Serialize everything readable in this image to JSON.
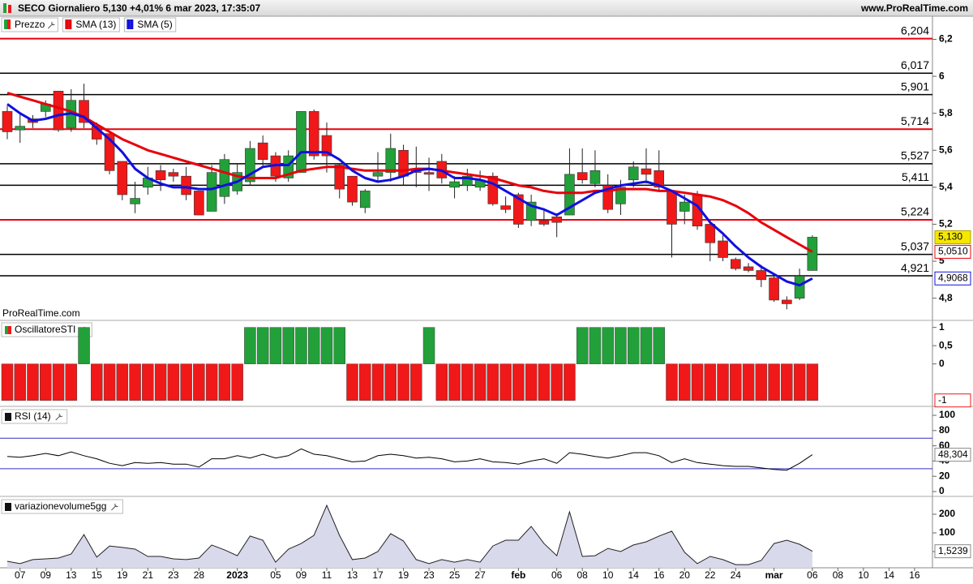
{
  "header": {
    "title": "SECO Giornaliero 5,130 +4,01% 6 mar 2023, 17:35:07",
    "site": "www.ProRealTime.com"
  },
  "chart_data": [
    {
      "type": "candlestick",
      "watermark": "ProRealTime.com",
      "categories": [
        null,
        "07",
        null,
        "09",
        null,
        "13",
        null,
        "15",
        null,
        "19",
        null,
        "21",
        null,
        "23",
        null,
        "28",
        null,
        null,
        "2023",
        null,
        null,
        "05",
        null,
        "09",
        null,
        "11",
        null,
        "13",
        null,
        "17",
        null,
        "19",
        null,
        "23",
        null,
        "25",
        null,
        "27",
        null,
        null,
        "feb",
        null,
        null,
        "06",
        null,
        "08",
        null,
        "10",
        null,
        "14",
        null,
        "16",
        null,
        "20",
        null,
        "22",
        null,
        "24",
        null,
        null,
        "mar",
        null,
        null,
        "06",
        null,
        "08",
        null,
        "10",
        null,
        "14",
        null,
        "16"
      ],
      "ylim": [
        4.68,
        6.325
      ],
      "yticks": [
        {
          "value": 4.8,
          "label": "4,8"
        },
        5,
        {
          "value": 5.2,
          "label": "5,2"
        },
        {
          "value": 5.4,
          "label": "5,4"
        },
        {
          "value": 5.6,
          "label": "5,6"
        },
        {
          "value": 5.8,
          "label": "5,8"
        },
        6,
        {
          "value": 6.2,
          "label": "6,2"
        }
      ],
      "levels": [
        {
          "value": 6.204,
          "label": "6,204",
          "color": "#e8000b"
        },
        {
          "value": 6.017,
          "label": "6,017",
          "color": "#000000"
        },
        {
          "value": 5.901,
          "label": "5,901",
          "color": "#000000"
        },
        {
          "value": 5.714,
          "label": "5,714",
          "color": "#e8000b"
        },
        {
          "value": 5.527,
          "label": "5,527",
          "color": "#000000"
        },
        {
          "value": 5.411,
          "label": "5,411",
          "color": "#000000"
        },
        {
          "value": 5.224,
          "label": "5,224",
          "color": "#e8000b"
        },
        {
          "value": 5.037,
          "label": "5,037",
          "color": "#000000"
        },
        {
          "value": 4.921,
          "label": "4,921",
          "color": "#000000"
        }
      ],
      "series": [
        {
          "name": "Prezzo",
          "color_up": "#22a03a",
          "color_down": "#f01818",
          "last_label": "5,130",
          "open": [
            5.81,
            5.71,
            5.77,
            5.81,
            5.92,
            5.72,
            5.87,
            5.73,
            5.69,
            5.54,
            5.31,
            5.4,
            5.49,
            5.48,
            5.46,
            5.38,
            5.27,
            5.35,
            5.38,
            5.43,
            5.64,
            5.57,
            5.45,
            5.48,
            5.81,
            5.68,
            5.52,
            5.46,
            5.29,
            5.46,
            5.48,
            5.6,
            5.5,
            5.48,
            5.54,
            5.4,
            5.41,
            5.4,
            5.46,
            5.3,
            5.36,
            5.22,
            5.22,
            5.24,
            5.25,
            5.48,
            5.42,
            5.41,
            5.31,
            5.44,
            5.5,
            5.49,
            5.38,
            5.27,
            5.36,
            5.2,
            5.11,
            5.01,
            4.97,
            4.95,
            4.91,
            4.79,
            4.8,
            4.95,
            null,
            null,
            null,
            null,
            null,
            null,
            null,
            null
          ],
          "high": [
            5.84,
            5.8,
            5.79,
            5.87,
            5.92,
            5.93,
            5.96,
            5.75,
            5.69,
            5.54,
            5.43,
            5.51,
            5.52,
            5.5,
            5.51,
            5.38,
            5.52,
            5.58,
            5.53,
            5.65,
            5.68,
            5.59,
            5.6,
            5.81,
            5.82,
            5.75,
            5.53,
            5.46,
            5.39,
            5.59,
            5.69,
            5.63,
            5.62,
            5.56,
            5.58,
            5.46,
            5.5,
            5.49,
            5.48,
            5.35,
            5.37,
            5.36,
            5.28,
            5.26,
            5.61,
            5.61,
            5.6,
            5.47,
            5.44,
            5.54,
            5.61,
            5.6,
            5.38,
            5.36,
            5.38,
            5.22,
            5.14,
            5.02,
            4.99,
            4.98,
            4.92,
            4.81,
            4.96,
            5.14,
            null,
            null,
            null,
            null,
            null,
            null,
            null,
            null
          ],
          "low": [
            5.66,
            5.64,
            5.72,
            5.78,
            5.7,
            5.7,
            5.72,
            5.63,
            5.47,
            5.33,
            5.26,
            5.36,
            5.38,
            5.43,
            5.33,
            5.25,
            5.27,
            5.31,
            5.36,
            5.41,
            5.51,
            5.43,
            5.43,
            5.48,
            5.55,
            5.48,
            5.34,
            5.3,
            5.26,
            5.43,
            5.43,
            5.41,
            5.4,
            5.38,
            5.42,
            5.34,
            5.38,
            5.38,
            5.3,
            5.26,
            5.18,
            5.19,
            5.19,
            5.13,
            5.25,
            5.42,
            5.4,
            5.26,
            5.25,
            5.4,
            5.42,
            5.38,
            5.02,
            5.2,
            5.17,
            5.0,
            5.0,
            4.95,
            4.94,
            4.86,
            4.78,
            4.74,
            4.79,
            4.95,
            null,
            null,
            null,
            null,
            null,
            null,
            null,
            null
          ],
          "close": [
            5.7,
            5.73,
            5.75,
            5.85,
            5.71,
            5.87,
            5.75,
            5.66,
            5.49,
            5.36,
            5.34,
            5.45,
            5.44,
            5.46,
            5.36,
            5.25,
            5.48,
            5.55,
            5.48,
            5.61,
            5.55,
            5.46,
            5.57,
            5.81,
            5.57,
            5.57,
            5.39,
            5.32,
            5.38,
            5.48,
            5.61,
            5.46,
            5.48,
            5.47,
            5.45,
            5.43,
            5.46,
            5.44,
            5.31,
            5.28,
            5.2,
            5.32,
            5.2,
            5.21,
            5.47,
            5.44,
            5.49,
            5.28,
            5.4,
            5.51,
            5.47,
            5.4,
            5.2,
            5.32,
            5.19,
            5.1,
            5.02,
            4.96,
            4.95,
            4.9,
            4.79,
            4.77,
            4.92,
            5.13,
            null,
            null,
            null,
            null,
            null,
            null,
            null,
            null
          ]
        },
        {
          "name": "SMA (13)",
          "color": "#e8000b",
          "last_label": "5,0510",
          "values": [
            5.91,
            5.89,
            5.87,
            5.85,
            5.83,
            5.81,
            5.78,
            5.74,
            5.7,
            5.66,
            5.63,
            5.6,
            5.58,
            5.56,
            5.54,
            5.52,
            5.5,
            5.48,
            5.46,
            5.45,
            5.45,
            5.45,
            5.47,
            5.49,
            5.5,
            5.51,
            5.51,
            5.5,
            5.49,
            5.49,
            5.49,
            5.49,
            5.5,
            5.5,
            5.49,
            5.48,
            5.47,
            5.46,
            5.45,
            5.43,
            5.41,
            5.4,
            5.38,
            5.37,
            5.37,
            5.37,
            5.38,
            5.38,
            5.39,
            5.39,
            5.39,
            5.38,
            5.38,
            5.37,
            5.36,
            5.35,
            5.33,
            5.3,
            5.26,
            5.21,
            5.17,
            5.13,
            5.09,
            5.051,
            null,
            null,
            null,
            null,
            null,
            null,
            null,
            null
          ]
        },
        {
          "name": "SMA (5)",
          "color": "#1010e0",
          "last_label": "4,9068",
          "values": [
            5.85,
            5.8,
            5.76,
            5.77,
            5.79,
            5.8,
            5.78,
            5.72,
            5.66,
            5.59,
            5.5,
            5.45,
            5.42,
            5.4,
            5.4,
            5.39,
            5.39,
            5.41,
            5.43,
            5.47,
            5.51,
            5.52,
            5.52,
            5.59,
            5.59,
            5.59,
            5.55,
            5.49,
            5.45,
            5.43,
            5.44,
            5.46,
            5.49,
            5.5,
            5.49,
            5.45,
            5.45,
            5.44,
            5.42,
            5.38,
            5.34,
            5.3,
            5.28,
            5.25,
            5.29,
            5.33,
            5.37,
            5.39,
            5.41,
            5.42,
            5.43,
            5.41,
            5.38,
            5.34,
            5.3,
            5.21,
            5.15,
            5.08,
            5.02,
            4.97,
            4.93,
            4.89,
            4.87,
            4.9068,
            null,
            null,
            null,
            null,
            null,
            null,
            null,
            null
          ]
        }
      ]
    },
    {
      "type": "bar",
      "title": "OscillatoreSTI",
      "color_up": "#22a03a",
      "color_down": "#f01818",
      "ylim": [
        -1.14,
        1.17
      ],
      "yticks": [
        {
          "value": 0.5,
          "label": "0,5"
        },
        0,
        1
      ],
      "values": [
        -1,
        -1,
        -1,
        -1,
        -1,
        -1,
        1,
        -1,
        -1,
        -1,
        -1,
        -1,
        -1,
        -1,
        -1,
        -1,
        -1,
        -1,
        -1,
        1,
        1,
        1,
        1,
        1,
        1,
        1,
        1,
        -1,
        -1,
        -1,
        -1,
        -1,
        -1,
        1,
        -1,
        -1,
        -1,
        -1,
        -1,
        -1,
        -1,
        -1,
        -1,
        -1,
        -1,
        1,
        1,
        1,
        1,
        1,
        1,
        1,
        -1,
        -1,
        -1,
        -1,
        -1,
        -1,
        -1,
        -1,
        -1,
        -1,
        -1,
        -1,
        null,
        null,
        null,
        null,
        null,
        null,
        null,
        null
      ]
    },
    {
      "type": "line",
      "title": "RSI (14)",
      "color": "#000000",
      "level_color": "#3030c0",
      "levels": [
        70,
        30
      ],
      "last_label": "48,304",
      "ylim": [
        -5.3,
        109.6
      ],
      "yticks": [
        0,
        20,
        40,
        60,
        80,
        100
      ],
      "values": [
        46,
        45,
        47,
        50,
        47,
        52,
        47,
        43,
        37,
        34,
        38,
        37,
        38,
        36,
        36,
        32,
        43,
        43,
        47,
        44,
        49,
        44,
        47,
        56,
        49,
        47,
        43,
        39,
        40,
        47,
        49,
        47,
        44,
        45,
        43,
        39,
        40,
        43,
        39,
        38,
        36,
        40,
        43,
        37,
        51,
        49,
        46,
        44,
        47,
        51,
        51,
        47,
        38,
        43,
        38,
        36,
        34,
        33,
        33,
        31,
        29,
        28,
        37,
        48.304,
        null,
        null,
        null,
        null,
        null,
        null,
        null,
        null
      ]
    },
    {
      "type": "area",
      "title": "variazionevolume5gg",
      "color": "#222222",
      "fill": "#d9d9ec",
      "last_label": "1,5239",
      "ylim": [
        -87,
        287
      ],
      "yticks": [
        0,
        100,
        200
      ],
      "values": [
        -52,
        -65,
        -43,
        -39,
        -35,
        -13,
        91,
        -30,
        30,
        22,
        13,
        -26,
        -26,
        -39,
        -43,
        -35,
        35,
        9,
        -22,
        83,
        61,
        -57,
        13,
        43,
        87,
        248,
        87,
        -43,
        -35,
        0,
        96,
        57,
        -43,
        -65,
        -43,
        -57,
        -43,
        -57,
        30,
        61,
        61,
        135,
        43,
        -22,
        213,
        -26,
        -22,
        17,
        0,
        35,
        52,
        83,
        109,
        -4,
        -65,
        -26,
        -43,
        -70,
        -70,
        -48,
        43,
        61,
        39,
        1.5239,
        null,
        null,
        null,
        null,
        null,
        null,
        null,
        null
      ]
    }
  ]
}
